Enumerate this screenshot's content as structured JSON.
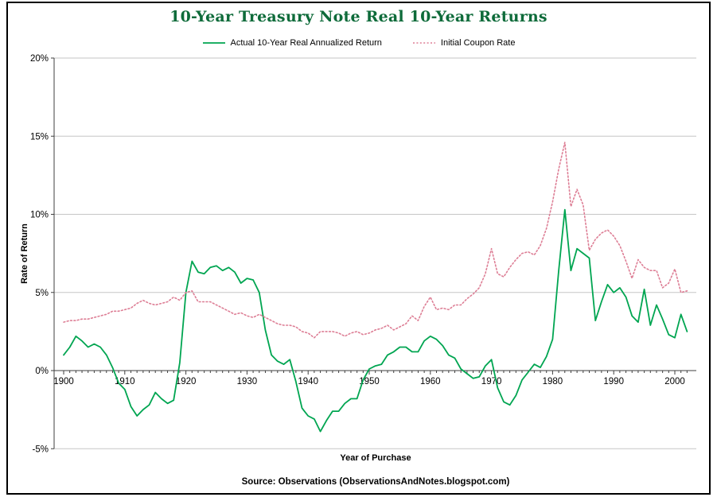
{
  "page": {
    "source_note": "Source: Observations (ObservationsAndNotes.blogspot.com)"
  },
  "colors": {
    "series_actual": "#00A551",
    "series_coupon": "#DD7E95",
    "title_text": "#0E6B3A",
    "gridline": "#C6C6C6",
    "axis": "#3F3F3F",
    "frame": "#000000"
  },
  "chart_data": {
    "type": "line",
    "title": "10-Year Treasury Note Real 10-Year Returns",
    "xlabel": "Year of Purchase",
    "ylabel": "Rate of Return",
    "ylim": [
      -5,
      20
    ],
    "yticks": [
      20,
      15,
      10,
      5,
      0,
      -5
    ],
    "ytick_labels": [
      "20%",
      "15%",
      "10%",
      "5%",
      "0%",
      "-5%"
    ],
    "xticks": [
      1900,
      1910,
      1920,
      1930,
      1940,
      1950,
      1960,
      1970,
      1980,
      1990,
      2000
    ],
    "grid": "horizontal-major",
    "legend_position": "top-center",
    "x": [
      1900,
      1901,
      1902,
      1903,
      1904,
      1905,
      1906,
      1907,
      1908,
      1909,
      1910,
      1911,
      1912,
      1913,
      1914,
      1915,
      1916,
      1917,
      1918,
      1919,
      1920,
      1921,
      1922,
      1923,
      1924,
      1925,
      1926,
      1927,
      1928,
      1929,
      1930,
      1931,
      1932,
      1933,
      1934,
      1935,
      1936,
      1937,
      1938,
      1939,
      1940,
      1941,
      1942,
      1943,
      1944,
      1945,
      1946,
      1947,
      1948,
      1949,
      1950,
      1951,
      1952,
      1953,
      1954,
      1955,
      1956,
      1957,
      1958,
      1959,
      1960,
      1961,
      1962,
      1963,
      1964,
      1965,
      1966,
      1967,
      1968,
      1969,
      1970,
      1971,
      1972,
      1973,
      1974,
      1975,
      1976,
      1977,
      1978,
      1979,
      1980,
      1981,
      1982,
      1983,
      1984,
      1985,
      1986,
      1987,
      1988,
      1989,
      1990,
      1991,
      1992,
      1993,
      1994,
      1995,
      1996,
      1997,
      1998,
      1999,
      2000,
      2001,
      2002
    ],
    "series": [
      {
        "name": "Actual 10-Year Real Annualized Return",
        "line_style": "solid",
        "color": "#00A551",
        "values": [
          1.0,
          1.5,
          2.2,
          1.9,
          1.5,
          1.7,
          1.5,
          1.0,
          0.2,
          -0.8,
          -1.2,
          -2.3,
          -2.9,
          -2.5,
          -2.2,
          -1.4,
          -1.8,
          -2.1,
          -1.9,
          0.5,
          5.0,
          7.0,
          6.3,
          6.2,
          6.6,
          6.7,
          6.4,
          6.6,
          6.3,
          5.6,
          5.9,
          5.8,
          5.0,
          2.6,
          1.0,
          0.6,
          0.4,
          0.7,
          -0.7,
          -2.4,
          -2.9,
          -3.1,
          -3.9,
          -3.2,
          -2.6,
          -2.6,
          -2.1,
          -1.8,
          -1.8,
          -0.6,
          0.1,
          0.3,
          0.4,
          1.0,
          1.2,
          1.5,
          1.5,
          1.2,
          1.2,
          1.9,
          2.2,
          2.0,
          1.6,
          1.0,
          0.8,
          0.1,
          -0.2,
          -0.5,
          -0.4,
          0.3,
          0.7,
          -1.1,
          -2.0,
          -2.2,
          -1.6,
          -0.6,
          -0.1,
          0.4,
          0.2,
          0.9,
          2.0,
          6.4,
          10.3,
          6.4,
          7.8,
          7.5,
          7.2,
          3.2,
          4.4,
          5.5,
          5.0,
          5.3,
          4.7,
          3.5,
          3.1,
          5.2,
          2.9,
          4.2,
          3.3,
          2.3,
          2.1,
          3.6,
          2.5
        ]
      },
      {
        "name": "Initial Coupon Rate",
        "line_style": "dotted",
        "color": "#DD7E95",
        "values": [
          3.1,
          3.2,
          3.2,
          3.3,
          3.3,
          3.4,
          3.5,
          3.6,
          3.8,
          3.8,
          3.9,
          4.0,
          4.3,
          4.5,
          4.3,
          4.2,
          4.3,
          4.4,
          4.7,
          4.5,
          5.0,
          5.1,
          4.4,
          4.4,
          4.4,
          4.2,
          4.0,
          3.8,
          3.6,
          3.7,
          3.5,
          3.4,
          3.6,
          3.4,
          3.2,
          3.0,
          2.9,
          2.9,
          2.8,
          2.5,
          2.4,
          2.1,
          2.5,
          2.5,
          2.5,
          2.4,
          2.2,
          2.4,
          2.5,
          2.3,
          2.4,
          2.6,
          2.7,
          2.9,
          2.6,
          2.8,
          3.0,
          3.5,
          3.2,
          4.1,
          4.7,
          3.9,
          4.0,
          3.9,
          4.2,
          4.2,
          4.6,
          4.9,
          5.3,
          6.2,
          7.8,
          6.2,
          6.0,
          6.6,
          7.1,
          7.5,
          7.6,
          7.4,
          8.0,
          9.1,
          10.8,
          12.9,
          14.6,
          10.5,
          11.6,
          10.6,
          7.7,
          8.4,
          8.8,
          9.0,
          8.6,
          8.0,
          7.0,
          5.9,
          7.1,
          6.6,
          6.4,
          6.4,
          5.3,
          5.6,
          6.5,
          5.0,
          5.1
        ]
      }
    ]
  }
}
